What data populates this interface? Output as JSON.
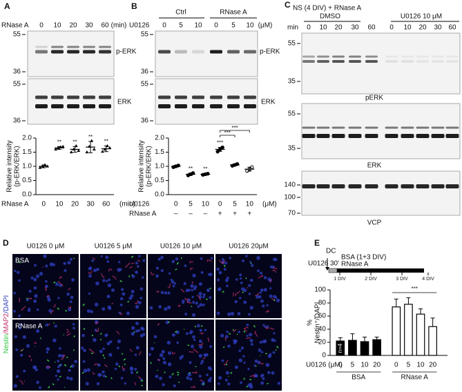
{
  "figure": {
    "A": {
      "letter": "A",
      "treatment": "RNase A",
      "lanes": [
        "0",
        "10",
        "20",
        "30",
        "60"
      ],
      "unit": "(min)",
      "blots": [
        {
          "label": "p-ERK",
          "mw": [
            "55",
            "36"
          ]
        },
        {
          "label": "ERK",
          "mw": [
            "55",
            "36"
          ]
        }
      ]
    },
    "B": {
      "letter": "B",
      "groups": [
        "Ctrl",
        "RNase A"
      ],
      "treatment": "U0126",
      "lanes": [
        "0",
        "5",
        "10",
        "0",
        "5",
        "10"
      ],
      "unit": "(μM)",
      "blots": [
        {
          "label": "p-ERK",
          "mw": [
            "55",
            "36"
          ]
        },
        {
          "label": "ERK",
          "mw": [
            "55",
            "36"
          ]
        }
      ]
    },
    "C": {
      "letter": "C",
      "title": "NS (4 DIV) + RNase A",
      "groups": [
        "DMSO",
        "U0126 10 μM"
      ],
      "time_label": "min",
      "lanes": [
        "0",
        "10",
        "20",
        "30",
        "60",
        "0",
        "10",
        "20",
        "30",
        "60"
      ],
      "blots": [
        {
          "label": "pERK",
          "mw": [
            "55",
            "35"
          ]
        },
        {
          "label": "ERK",
          "mw": [
            "55",
            "35"
          ]
        },
        {
          "label": "VCP",
          "mw": [
            "140",
            "100",
            "70"
          ]
        }
      ]
    },
    "D": {
      "letter": "D",
      "columns": [
        "U0126 0 μM",
        "U0126 5 μM",
        "U0126 10 μM",
        "U0126 20μM"
      ],
      "rows": [
        "BSA",
        "RNase A"
      ],
      "stain": [
        "Nestin",
        "/MAP2",
        "/DAPI"
      ]
    },
    "E": {
      "letter": "E",
      "title": "DC",
      "drug": "U0126",
      "pretreat": "30'",
      "condition": "BSA (1+3 DIV)",
      "treatment": "RNase A",
      "days": [
        "1 DIV",
        "2 DIV",
        "3 DIV",
        "4 DIV"
      ]
    }
  },
  "chart_data": [
    {
      "type": "dot",
      "ylabel": [
        "Relative intensity",
        "(p-ERK/ERK)"
      ],
      "x_label": "RNase A",
      "x_unit": "(min)",
      "categories": [
        "0",
        "10",
        "20",
        "30",
        "60"
      ],
      "values": [
        1.0,
        1.65,
        1.6,
        1.68,
        1.62
      ],
      "errors": [
        0.05,
        0.05,
        0.1,
        0.2,
        0.1
      ],
      "points": [
        [
          0.95,
          1.0,
          1.05,
          1.0
        ],
        [
          1.6,
          1.65,
          1.68,
          1.7
        ],
        [
          1.5,
          1.6,
          1.72,
          1.55
        ],
        [
          1.5,
          1.7,
          1.9,
          1.6
        ],
        [
          1.52,
          1.6,
          1.72,
          1.65
        ]
      ],
      "significance": [
        null,
        "**",
        "**",
        "**",
        "**"
      ],
      "ylim": [
        0,
        2
      ],
      "yticks": [
        {
          "value": 0,
          "label": "0.0"
        },
        0.5,
        {
          "value": 1,
          "label": "1.0"
        },
        1.5,
        {
          "value": 2,
          "label": "2.0"
        }
      ],
      "marker": "triangle",
      "color": "#000"
    },
    {
      "type": "dot",
      "ylabel": [
        "Relative intensity",
        "(p-ERK/ERK)"
      ],
      "x_label": "U0126",
      "x_unit": "(μM)",
      "categories": [
        "0",
        "5",
        "10",
        "0",
        "5",
        "10"
      ],
      "treatment": {
        "label": "RNase A",
        "values": [
          "–",
          "–",
          "–",
          "+",
          "+",
          "+"
        ]
      },
      "values": [
        1.0,
        0.72,
        0.72,
        1.6,
        1.05,
        0.9
      ],
      "errors": [
        0.03,
        0.04,
        0.03,
        0.07,
        0.03,
        0.07
      ],
      "points": [
        [
          0.97,
          1.0,
          1.03
        ],
        [
          0.68,
          0.72,
          0.76
        ],
        [
          0.7,
          0.72,
          0.74
        ],
        [
          1.52,
          1.6,
          1.67
        ],
        [
          1.02,
          1.05,
          1.08
        ],
        [
          0.84,
          0.9,
          0.97
        ]
      ],
      "significance": [
        null,
        "**",
        "**",
        "***",
        null,
        null
      ],
      "brackets": [
        {
          "from": 3,
          "to": 4,
          "label": "***"
        },
        {
          "from": 3,
          "to": 5,
          "label": "***"
        }
      ],
      "ylim": [
        0,
        2
      ],
      "yticks": [
        {
          "value": 0,
          "label": "0.0"
        },
        0.5,
        {
          "value": 1,
          "label": "1.0"
        },
        1.5,
        {
          "value": 2,
          "label": "2.0"
        }
      ],
      "marker": "circle",
      "color": "#000"
    },
    {
      "type": "bar",
      "ylabel": [
        "%",
        "Nestin⁺/DAPI"
      ],
      "x_label": "U0126 (μM)",
      "categories": [
        "0",
        "5",
        "10",
        "20"
      ],
      "series": [
        {
          "name": "BSA",
          "color": "#000000",
          "values": [
            22,
            23,
            21,
            24
          ],
          "errors": [
            5,
            10,
            7,
            4
          ]
        },
        {
          "name": "RNase A",
          "color": "#ffffff",
          "values": [
            74,
            78,
            63,
            44
          ],
          "errors": [
            12,
            10,
            8,
            13
          ]
        }
      ],
      "brackets": [
        {
          "series": 1,
          "label": "***"
        }
      ],
      "n_label": "n=4",
      "ylim": [
        0,
        100
      ],
      "yticks": [
        0,
        20,
        40,
        60,
        80,
        100
      ]
    }
  ]
}
